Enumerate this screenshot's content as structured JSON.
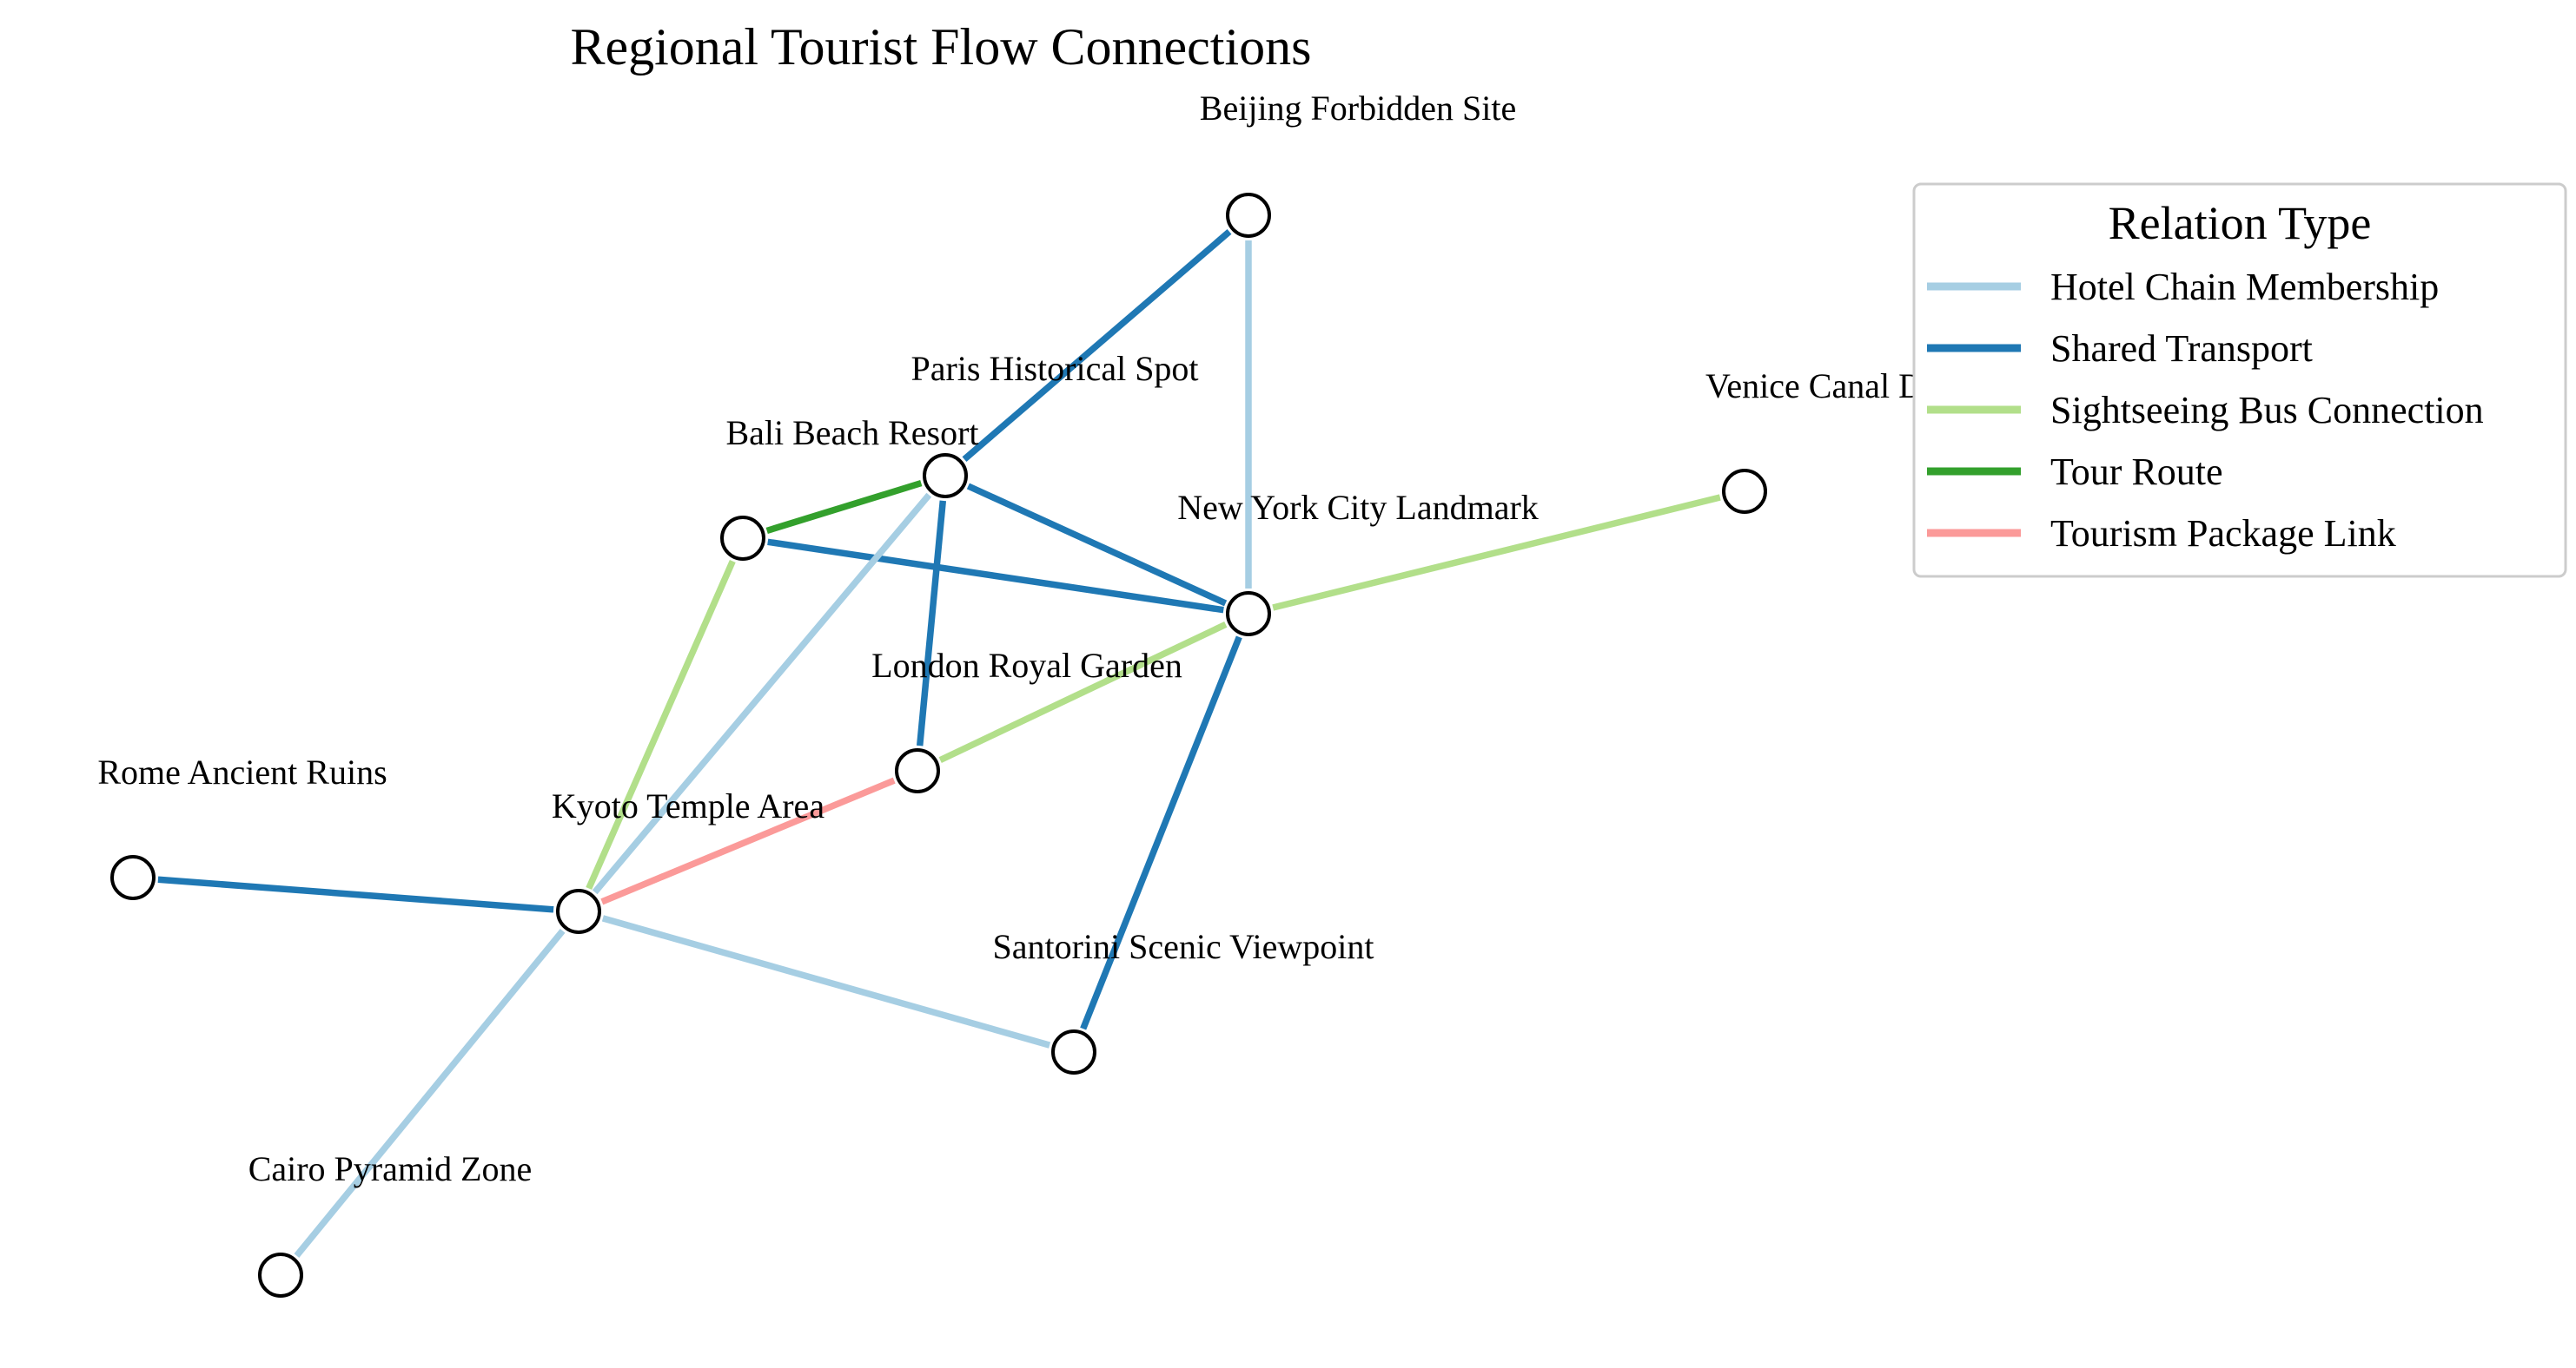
{
  "title": "Regional Tourist Flow Connections",
  "legend": {
    "title": "Relation Type",
    "placement": "top-right"
  },
  "relation_types": [
    {
      "id": "hotel",
      "label": "Hotel Chain Membership",
      "color": "#a6cee3"
    },
    {
      "id": "transport",
      "label": "Shared Transport",
      "color": "#1f78b4"
    },
    {
      "id": "bus",
      "label": "Sightseeing Bus Connection",
      "color": "#b2df8a"
    },
    {
      "id": "tour",
      "label": "Tour Route",
      "color": "#33a02c"
    },
    {
      "id": "package",
      "label": "Tourism Package Link",
      "color": "#fb9a99"
    }
  ],
  "nodes": [
    {
      "id": "beijing",
      "label": "Beijing Forbidden Site"
    },
    {
      "id": "paris",
      "label": "Paris Historical Spot"
    },
    {
      "id": "venice",
      "label": "Venice Canal District"
    },
    {
      "id": "bali",
      "label": "Bali Beach Resort"
    },
    {
      "id": "newyork",
      "label": "New York City Landmark"
    },
    {
      "id": "london",
      "label": "London Royal Garden"
    },
    {
      "id": "rome",
      "label": "Rome Ancient Ruins"
    },
    {
      "id": "kyoto",
      "label": "Kyoto Temple Area"
    },
    {
      "id": "santorini",
      "label": "Santorini Scenic Viewpoint"
    },
    {
      "id": "cairo",
      "label": "Cairo Pyramid Zone"
    }
  ],
  "edges": [
    {
      "source": "beijing",
      "target": "paris",
      "type": "transport"
    },
    {
      "source": "beijing",
      "target": "newyork",
      "type": "hotel"
    },
    {
      "source": "bali",
      "target": "paris",
      "type": "tour"
    },
    {
      "source": "bali",
      "target": "newyork",
      "type": "transport"
    },
    {
      "source": "paris",
      "target": "newyork",
      "type": "transport"
    },
    {
      "source": "paris",
      "target": "london",
      "type": "transport"
    },
    {
      "source": "paris",
      "target": "kyoto",
      "type": "hotel"
    },
    {
      "source": "bali",
      "target": "kyoto",
      "type": "bus"
    },
    {
      "source": "newyork",
      "target": "venice",
      "type": "bus"
    },
    {
      "source": "newyork",
      "target": "london",
      "type": "bus"
    },
    {
      "source": "newyork",
      "target": "santorini",
      "type": "transport"
    },
    {
      "source": "london",
      "target": "kyoto",
      "type": "package"
    },
    {
      "source": "rome",
      "target": "kyoto",
      "type": "transport"
    },
    {
      "source": "kyoto",
      "target": "santorini",
      "type": "hotel"
    },
    {
      "source": "kyoto",
      "target": "cairo",
      "type": "hotel"
    }
  ]
}
